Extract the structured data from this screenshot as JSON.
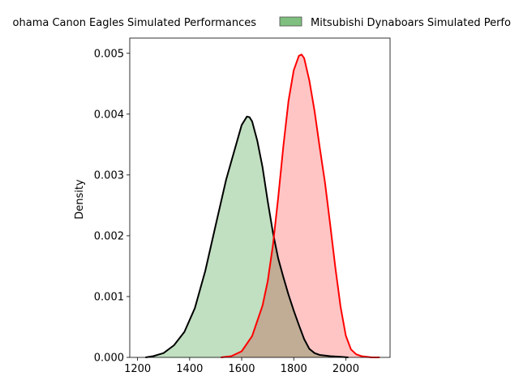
{
  "chart_data": {
    "type": "area",
    "title": "",
    "xlabel": "",
    "ylabel": "Density",
    "xlim": [
      1170,
      2170
    ],
    "ylim": [
      0,
      0.00525
    ],
    "x_ticks": [
      1200,
      1400,
      1600,
      1800,
      2000
    ],
    "y_ticks": [
      0.0,
      0.001,
      0.002,
      0.003,
      0.004,
      0.005
    ],
    "y_tick_labels": [
      "0.000",
      "0.001",
      "0.002",
      "0.003",
      "0.004",
      "0.005"
    ],
    "grid": false,
    "legend_placement": "top",
    "series": [
      {
        "name": "Yokohama Canon Eagles Simulated Performances",
        "display_name": "ohama Canon Eagles Simulated Performances",
        "fill_color": "#c1dfc1",
        "line_color": "#000000",
        "legend_swatch": "#7fbf7f",
        "x": [
          1230,
          1260,
          1300,
          1340,
          1380,
          1420,
          1460,
          1500,
          1540,
          1580,
          1600,
          1620,
          1630,
          1640,
          1660,
          1680,
          1700,
          1720,
          1740,
          1760,
          1780,
          1800,
          1820,
          1840,
          1860,
          1880,
          1900,
          1940,
          1980,
          2010
        ],
        "y": [
          0.0,
          2e-05,
          7e-05,
          0.0002,
          0.00042,
          0.00081,
          0.00142,
          0.00217,
          0.00292,
          0.00352,
          0.00382,
          0.00396,
          0.00395,
          0.00388,
          0.00356,
          0.00313,
          0.00257,
          0.00205,
          0.00163,
          0.00132,
          0.00103,
          0.00077,
          0.00053,
          0.0003,
          0.00014,
          7e-05,
          4e-05,
          2e-05,
          1e-05,
          0.0
        ]
      },
      {
        "name": "Mitsubishi Dynaboars Simulated Performances",
        "display_name": "Mitsubishi Dynaboars Simulated Perfo",
        "fill_color": "#ffbfbf",
        "line_color": "#ff0000",
        "legend_swatch": "#7fbf7f",
        "x": [
          1520,
          1560,
          1600,
          1640,
          1680,
          1700,
          1720,
          1740,
          1760,
          1780,
          1800,
          1820,
          1830,
          1840,
          1860,
          1880,
          1900,
          1920,
          1940,
          1960,
          1980,
          2000,
          2020,
          2040,
          2060,
          2080,
          2100,
          2130
        ],
        "y": [
          0.0,
          2e-05,
          0.0001,
          0.00035,
          0.00085,
          0.00125,
          0.00185,
          0.00262,
          0.00347,
          0.00422,
          0.00472,
          0.00496,
          0.00498,
          0.00492,
          0.00455,
          0.00405,
          0.00345,
          0.00287,
          0.00218,
          0.00147,
          0.00083,
          0.00036,
          0.00013,
          5e-05,
          2e-05,
          1e-05,
          0.0,
          0.0
        ]
      }
    ]
  }
}
